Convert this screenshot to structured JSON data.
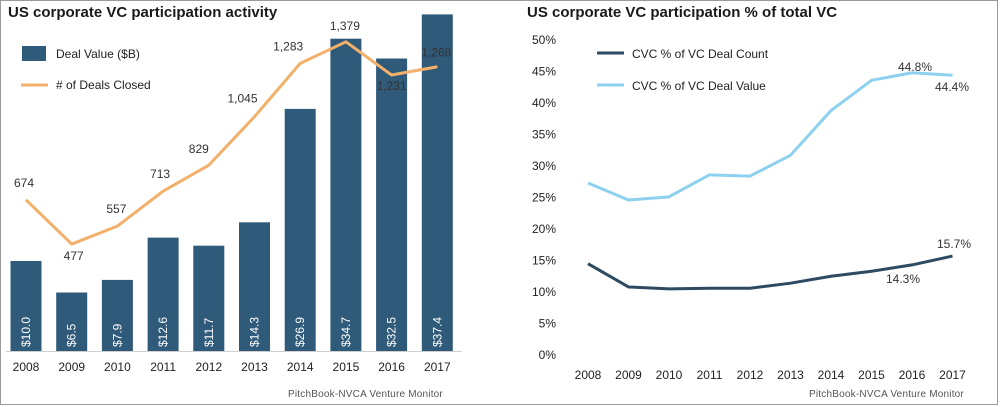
{
  "chart_data": [
    {
      "type": "bar",
      "title": "US corporate VC participation activity",
      "categories": [
        "2008",
        "2009",
        "2010",
        "2011",
        "2012",
        "2013",
        "2014",
        "2015",
        "2016",
        "2017"
      ],
      "series": [
        {
          "name": "Deal Value ($B)",
          "type": "bar",
          "color": "#2f5a7a",
          "values": [
            10.0,
            6.5,
            7.9,
            12.6,
            11.7,
            14.3,
            26.9,
            34.7,
            32.5,
            37.4
          ],
          "labels": [
            "$10.0",
            "$6.5",
            "$7.9",
            "$12.6",
            "$11.7",
            "$14.3",
            "$26.9",
            "$34.7",
            "$32.5",
            "$37.4"
          ]
        },
        {
          "name": "# of Deals Closed",
          "type": "line",
          "color": "#f2b06a",
          "values": [
            674,
            477,
            557,
            713,
            829,
            1045,
            1283,
            1379,
            1231,
            1268
          ],
          "labels": [
            "674",
            "477",
            "557",
            "713",
            "829",
            "1,045",
            "1,283",
            "1,379",
            "1,231",
            "1,268"
          ]
        }
      ],
      "legend": "top-left",
      "source": "PitchBook-NVCA Venture Monitor"
    },
    {
      "type": "line",
      "title": "US corporate VC participation % of total VC",
      "categories": [
        "2008",
        "2009",
        "2010",
        "2011",
        "2012",
        "2013",
        "2014",
        "2015",
        "2016",
        "2017"
      ],
      "ylim": [
        0,
        50
      ],
      "yticks": [
        "0%",
        "5%",
        "10%",
        "15%",
        "20%",
        "25%",
        "30%",
        "35%",
        "40%",
        "45%",
        "50%"
      ],
      "series": [
        {
          "name": "CVC % of VC Deal Count",
          "color": "#2c4a61",
          "values": [
            14.5,
            10.8,
            10.5,
            10.6,
            10.6,
            11.4,
            12.5,
            13.3,
            14.3,
            15.7
          ]
        },
        {
          "name": "CVC % of VC Deal Value",
          "color": "#8ed0ef",
          "values": [
            27.3,
            24.6,
            25.1,
            28.6,
            28.4,
            31.7,
            38.8,
            43.6,
            44.8,
            44.4
          ]
        }
      ],
      "annotations": [
        "44.8%",
        "44.4%",
        "15.7%",
        "14.3%"
      ],
      "legend": "top-left",
      "source": "PitchBook-NVCA Venture Monitor"
    }
  ]
}
